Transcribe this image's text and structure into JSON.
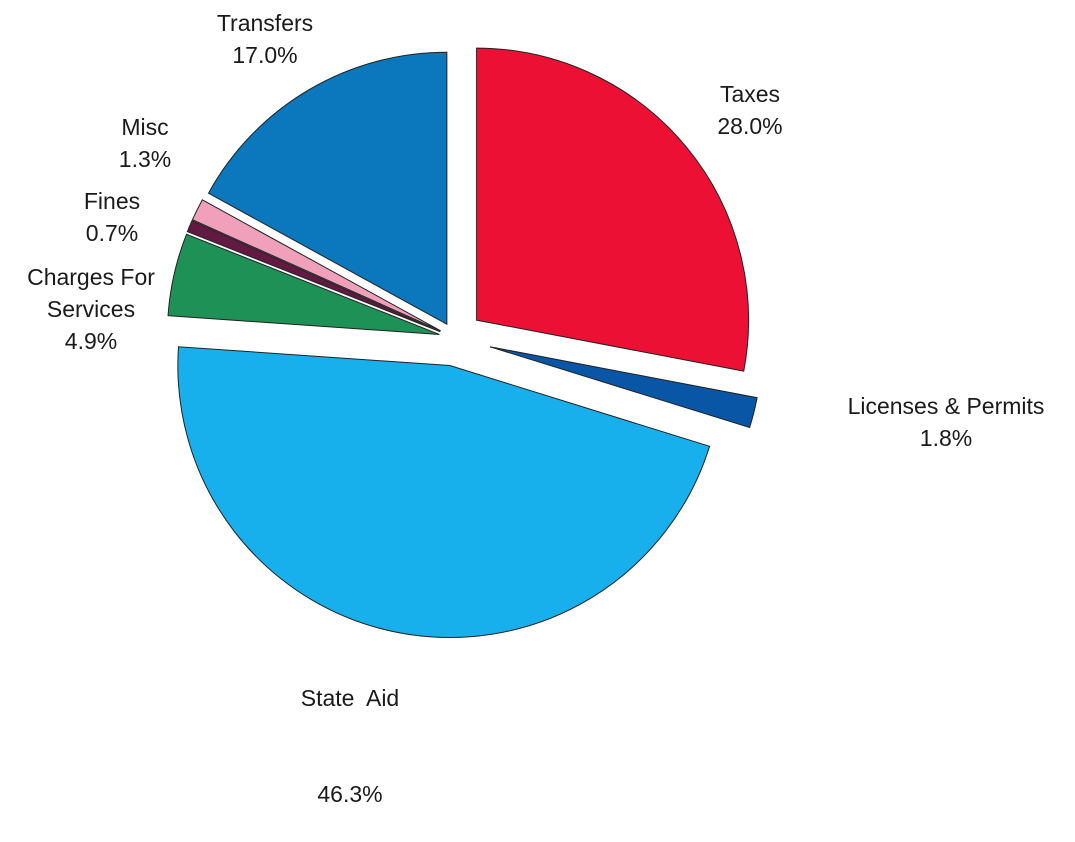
{
  "chart_data": {
    "type": "pie",
    "title": "",
    "slices": [
      {
        "label": "Taxes",
        "value": 28.0,
        "pct": "28.0%",
        "color": "#ec1035"
      },
      {
        "label": "Licenses & Permits",
        "value": 1.8,
        "pct": "1.8%",
        "color": "#0a56a6"
      },
      {
        "label": "State  Aid",
        "value": 46.3,
        "pct": "46.3%",
        "color": "#18b0ec"
      },
      {
        "label": "Charges For Services",
        "label_lines": [
          "Charges For",
          "Services"
        ],
        "value": 4.9,
        "pct": "4.9%",
        "color": "#1e9156"
      },
      {
        "label": "Fines",
        "value": 0.7,
        "pct": "0.7%",
        "color": "#621a42"
      },
      {
        "label": "Misc",
        "value": 1.3,
        "pct": "1.3%",
        "color": "#f0a0ba"
      },
      {
        "label": "Transfers",
        "value": 17.0,
        "pct": "17.0%",
        "color": "#0b78be"
      }
    ],
    "legend": "none",
    "start": "12 o'clock, clockwise"
  }
}
